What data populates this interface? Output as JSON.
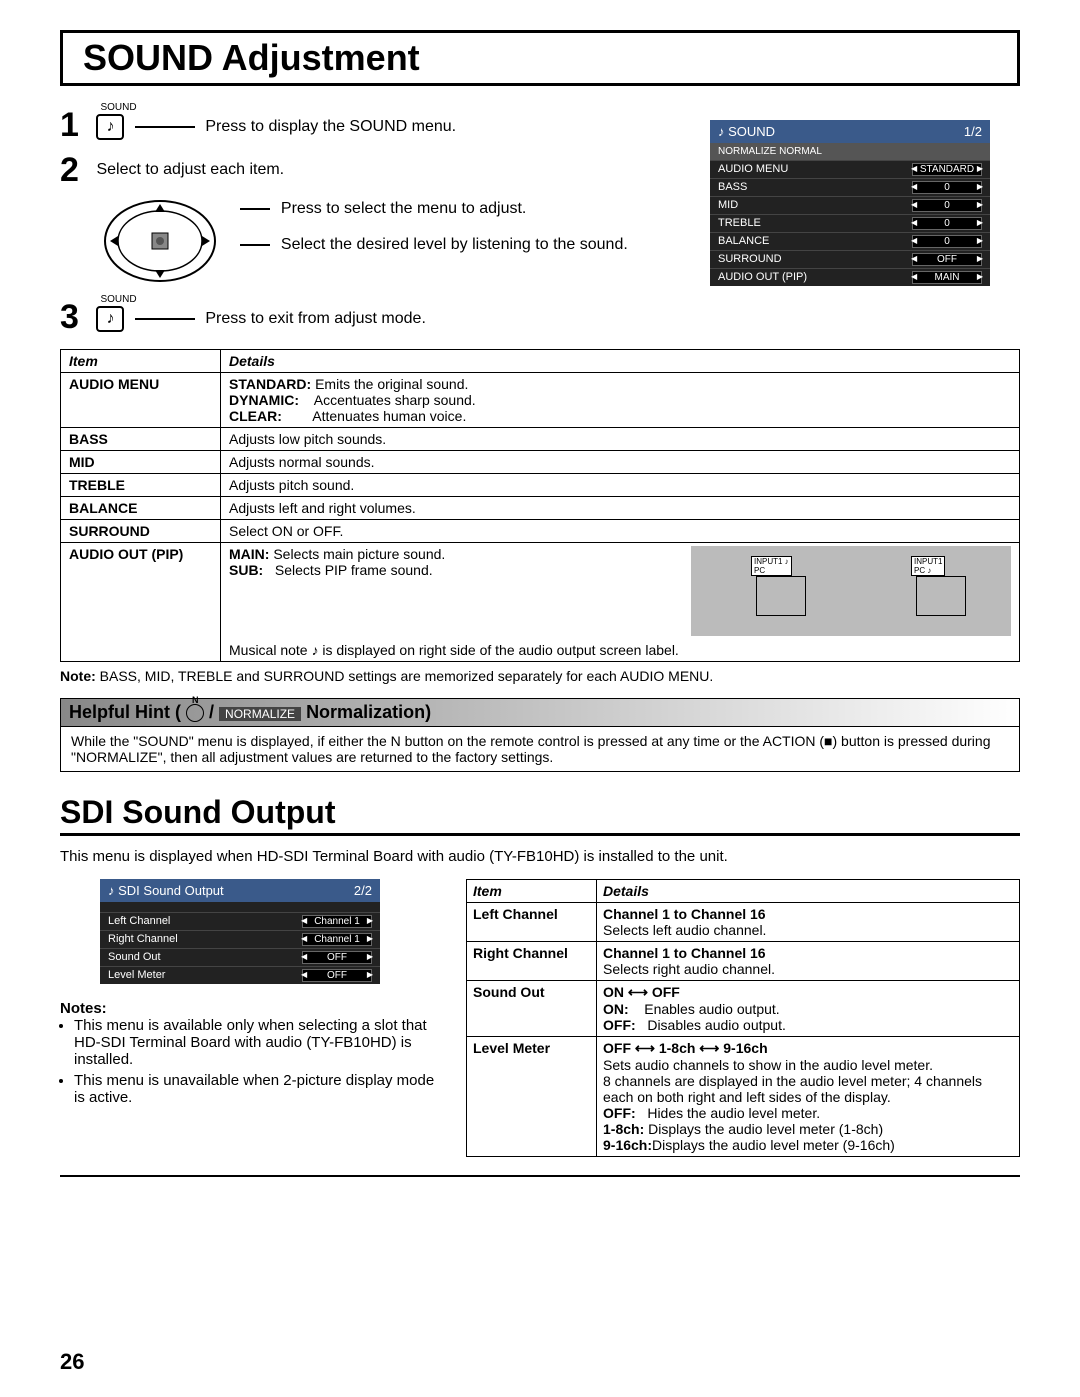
{
  "title": "SOUND Adjustment",
  "steps": {
    "s1_label": "SOUND",
    "s1_text": "Press to display the SOUND menu.",
    "s2_text": "Select to adjust each item.",
    "s2_sub1": "Press to select the menu to adjust.",
    "s2_sub2": "Select the desired level by listening to the sound.",
    "s3_label": "SOUND",
    "s3_text": "Press to exit from adjust mode."
  },
  "osd": {
    "title": "SOUND",
    "page": "1/2",
    "sub": "NORMALIZE   NORMAL",
    "rows": [
      {
        "label": "AUDIO MENU",
        "val": "STANDARD"
      },
      {
        "label": "BASS",
        "val": "0"
      },
      {
        "label": "MID",
        "val": "0"
      },
      {
        "label": "TREBLE",
        "val": "0"
      },
      {
        "label": "BALANCE",
        "val": "0"
      },
      {
        "label": "SURROUND",
        "val": "OFF"
      },
      {
        "label": "AUDIO OUT (PIP)",
        "val": "MAIN"
      }
    ]
  },
  "table": {
    "h_item": "Item",
    "h_details": "Details",
    "audio_menu": {
      "item": "AUDIO MENU",
      "l1a": "STANDARD:",
      "l1b": "Emits the original sound.",
      "l2a": "DYNAMIC:",
      "l2b": "Accentuates sharp sound.",
      "l3a": "CLEAR:",
      "l3b": "Attenuates human voice."
    },
    "bass": {
      "item": "BASS",
      "d": "Adjusts low pitch sounds."
    },
    "mid": {
      "item": "MID",
      "d": "Adjusts normal sounds."
    },
    "treble": {
      "item": "TREBLE",
      "d": "Adjusts pitch sound."
    },
    "balance": {
      "item": "BALANCE",
      "d": "Adjusts left and right volumes."
    },
    "surround": {
      "item": "SURROUND",
      "d": "Select ON or OFF."
    },
    "pip": {
      "item": "AUDIO OUT (PIP)",
      "l1a": "MAIN:",
      "l1b": "Selects main picture sound.",
      "l2a": "SUB:",
      "l2b": "Selects PIP frame sound.",
      "tag1": "INPUT1",
      "tag1b": "PC",
      "tag2": "INPUT1",
      "tag2b": "PC",
      "foot": "Musical note ♪ is displayed on right side of the audio output screen label."
    }
  },
  "note": "Note: BASS, MID, TREBLE and SURROUND settings are memorized separately for each AUDIO MENU.",
  "hint": {
    "title_a": "Helpful Hint (",
    "badge": "NORMALIZE",
    "title_b": " Normalization)",
    "body": "While the \"SOUND\" menu is displayed, if either the N button on the remote control is pressed at any time or the ACTION (■) button is pressed during \"NORMALIZE\", then all adjustment values are returned to the factory settings."
  },
  "sdi": {
    "title": "SDI Sound Output",
    "intro": "This menu is displayed when HD-SDI Terminal Board with audio (TY-FB10HD) is installed to the unit.",
    "osd": {
      "title": "SDI Sound Output",
      "page": "2/2",
      "rows": [
        {
          "label": "Left Channel",
          "val": "Channel 1"
        },
        {
          "label": "Right Channel",
          "val": "Channel 1"
        },
        {
          "label": "Sound Out",
          "val": "OFF"
        },
        {
          "label": "Level Meter",
          "val": "OFF"
        }
      ]
    },
    "notes_h": "Notes:",
    "notes": [
      "This menu is available only when selecting a slot that HD-SDI Terminal Board with audio (TY-FB10HD) is installed.",
      "This menu is unavailable when 2-picture display mode is active."
    ],
    "table": {
      "h_item": "Item",
      "h_details": "Details",
      "left": {
        "item": "Left Channel",
        "l1": "Channel 1 to Channel 16",
        "l2": "Selects left audio channel."
      },
      "right": {
        "item": "Right Channel",
        "l1": "Channel 1 to Channel 16",
        "l2": "Selects right audio channel."
      },
      "sout": {
        "item": "Sound Out",
        "l1": "ON ⟷ OFF",
        "l2a": "ON:",
        "l2b": "Enables audio output.",
        "l3a": "OFF:",
        "l3b": "Disables audio output."
      },
      "meter": {
        "item": "Level Meter",
        "l1": "OFF ⟷ 1-8ch ⟷ 9-16ch",
        "l2": "Sets audio channels to show in the audio level meter.",
        "l3": "8 channels are displayed in the audio level meter; 4 channels each on both right and left sides of the display.",
        "l4a": "OFF:",
        "l4b": "Hides the audio level meter.",
        "l5a": "1-8ch:",
        "l5b": "Displays the audio level meter (1-8ch)",
        "l6a": "9-16ch:",
        "l6b": "Displays the audio level meter (9-16ch)"
      }
    }
  },
  "page_num": "26"
}
